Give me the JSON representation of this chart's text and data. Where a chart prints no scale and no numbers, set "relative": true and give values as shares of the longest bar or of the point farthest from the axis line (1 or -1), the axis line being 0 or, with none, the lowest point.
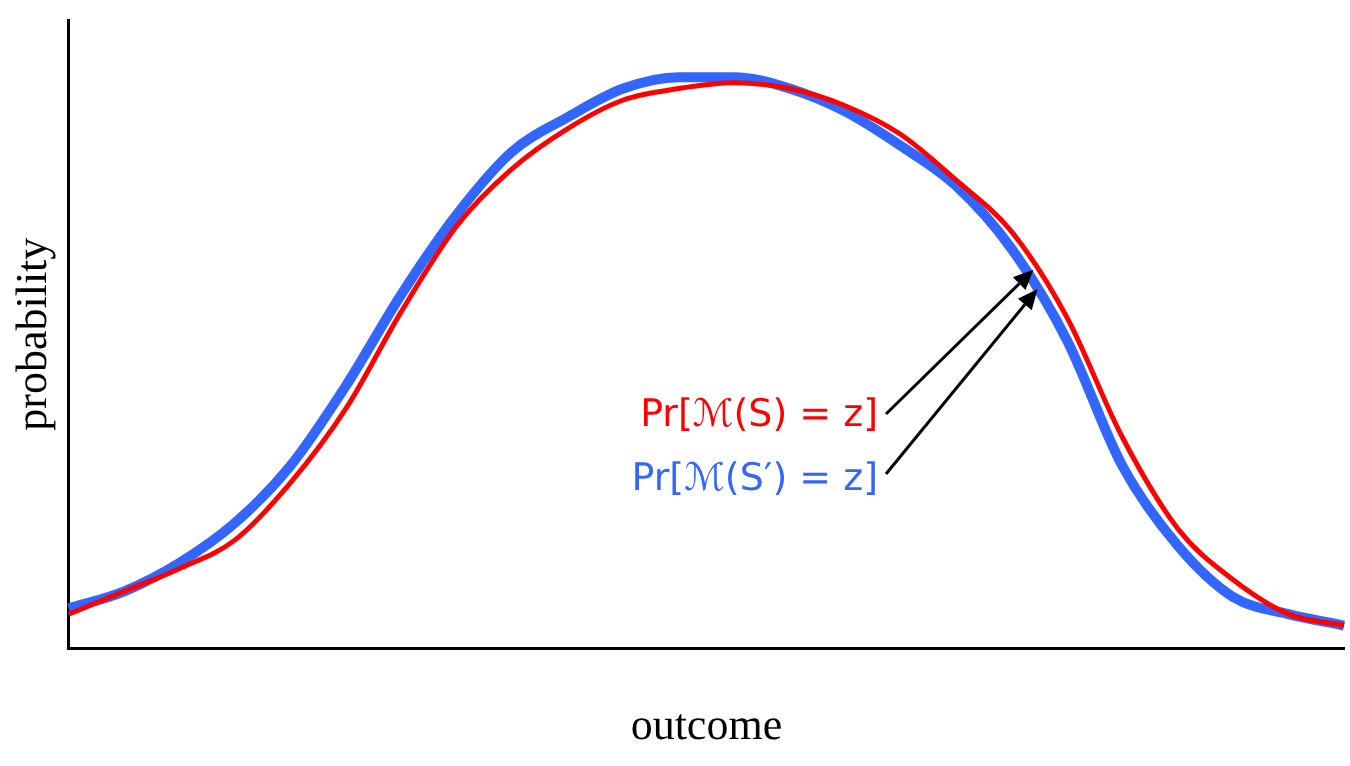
{
  "chart_data": {
    "type": "line",
    "relative": true,
    "xlabel": "outcome",
    "ylabel": "probability",
    "grid": false,
    "legend": false,
    "marker": "none",
    "line_style": "solid",
    "categories": [
      null,
      null,
      null,
      null,
      null,
      null,
      null,
      null,
      null,
      null,
      null,
      null,
      null,
      null,
      null,
      null,
      null,
      null,
      null,
      null,
      null,
      null,
      null,
      null
    ],
    "series": [
      {
        "name": "Pr[ℳ(S) = z]",
        "color": "#ff0000",
        "values": [
          0.06,
          0.1,
          0.14,
          0.19,
          0.29,
          0.42,
          0.59,
          0.74,
          0.84,
          0.91,
          0.96,
          0.98,
          0.99,
          0.98,
          0.95,
          0.9,
          0.82,
          0.73,
          0.58,
          0.37,
          0.21,
          0.12,
          0.06,
          0.04
        ]
      },
      {
        "name": "Pr[ℳ(S′) = z]",
        "color": "#3366ff",
        "values": [
          0.07,
          0.1,
          0.15,
          0.22,
          0.32,
          0.46,
          0.62,
          0.76,
          0.87,
          0.93,
          0.98,
          1.0,
          1.0,
          0.98,
          0.94,
          0.88,
          0.81,
          0.7,
          0.54,
          0.32,
          0.18,
          0.09,
          0.06,
          0.04
        ]
      }
    ]
  }
}
